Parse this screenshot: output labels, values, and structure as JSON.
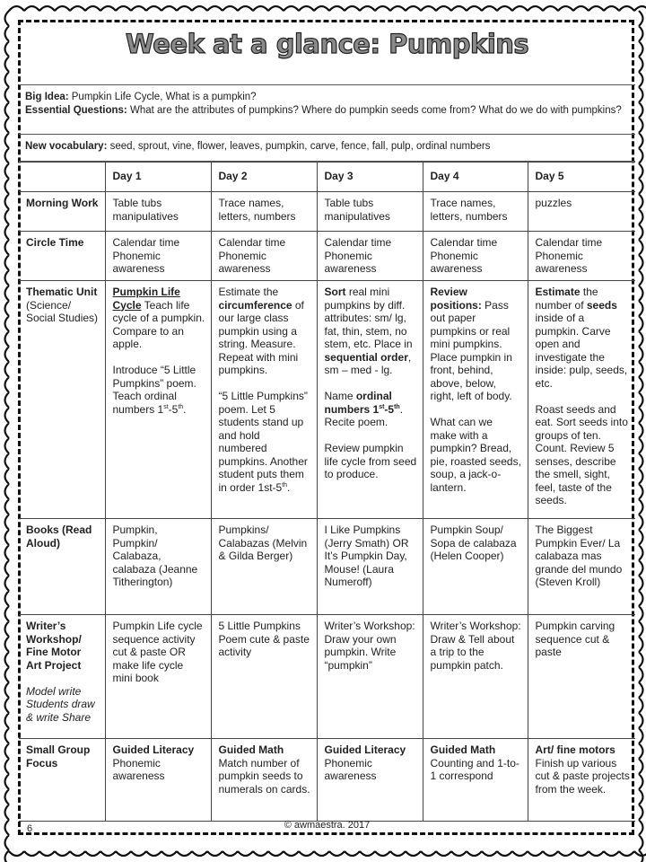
{
  "title": "Week at a glance: Pumpkins",
  "big_idea": {
    "label": "Big Idea:",
    "text": "Pumpkin Life Cycle, What is a pumpkin?"
  },
  "essential_questions": {
    "label": "Essential Questions:",
    "text": "What are the attributes of pumpkins?  Where do pumpkin seeds come from?  What do we do with pumpkins?"
  },
  "vocabulary": {
    "label": "New vocabulary:",
    "text": "seed, sprout, vine, flower, leaves, pumpkin,  carve, fence, fall, pulp,  ordinal numbers"
  },
  "table": {
    "days": [
      "Day 1",
      "Day 2",
      "Day 3",
      "Day 4",
      "Day 5"
    ],
    "rows": [
      {
        "label": [
          [
            {
              "t": "Morning Work"
            }
          ]
        ],
        "cells": [
          [
            [
              {
                "t": "Table tubs manipulatives"
              }
            ]
          ],
          [
            [
              {
                "t": "Trace names, letters, numbers"
              }
            ]
          ],
          [
            [
              {
                "t": "Table tubs manipulatives"
              }
            ]
          ],
          [
            [
              {
                "t": "Trace names, letters, numbers"
              }
            ]
          ],
          [
            [
              {
                "t": "puzzles"
              }
            ]
          ]
        ]
      },
      {
        "label": [
          [
            {
              "t": "Circle Time"
            }
          ]
        ],
        "cells": [
          [
            [
              {
                "t": "Calendar time Phonemic awareness"
              }
            ]
          ],
          [
            [
              {
                "t": "Calendar time Phonemic awareness"
              }
            ]
          ],
          [
            [
              {
                "t": "Calendar time Phonemic awareness"
              }
            ]
          ],
          [
            [
              {
                "t": "Calendar time Phonemic awareness"
              }
            ]
          ],
          [
            [
              {
                "t": "Calendar time Phonemic awareness"
              }
            ]
          ]
        ]
      },
      {
        "label": [
          [
            {
              "t": "Thematic Unit"
            },
            {
              "t": " (Science/ Social Studies)",
              "n": true
            }
          ]
        ],
        "cells": [
          [
            [
              {
                "t": "Pumpkin Life Cycle",
                "b": true,
                "u": true
              },
              {
                "t": " Teach life cycle of a pumpkin. Compare to an apple."
              }
            ],
            [
              {
                "t": "Introduce “5 Little Pumpkins” poem. Teach ordinal numbers 1"
              },
              {
                "t": "st",
                "sup": true
              },
              {
                "t": "-5"
              },
              {
                "t": "th",
                "sup": true
              },
              {
                "t": "."
              }
            ]
          ],
          [
            [
              {
                "t": "Estimate the "
              },
              {
                "t": "circumference",
                "b": true
              },
              {
                "t": " of our large class pumpkin using a string.  Measure. Repeat with mini pumpkins."
              }
            ],
            [
              {
                "t": "“5 Little Pumpkins” poem. Let 5 students stand up and hold numbered pumpkins. Another student puts them in order 1st-5"
              },
              {
                "t": "th",
                "sup": true
              },
              {
                "t": "."
              }
            ]
          ],
          [
            [
              {
                "t": "Sort",
                "b": true
              },
              {
                "t": " real mini pumpkins by diff. attributes: sm/ lg, fat, thin, stem, no stem, etc. Place in "
              },
              {
                "t": "sequential order",
                "b": true
              },
              {
                "t": ", sm – med - lg."
              }
            ],
            [
              {
                "t": "Name "
              },
              {
                "t": "ordinal numbers 1",
                "b": true
              },
              {
                "t": "st",
                "sup": true,
                "b": true
              },
              {
                "t": "-5",
                "b": true
              },
              {
                "t": "th",
                "sup": true,
                "b": true
              },
              {
                "t": ". Recite poem."
              }
            ],
            [
              {
                "t": "Review pumpkin life cycle from seed to produce."
              }
            ]
          ],
          [
            [
              {
                "t": "Review positions:",
                "b": true
              },
              {
                "t": " Pass out paper pumpkins or real mini pumpkins. Place pumpkin in front, behind, above, below, right, left of body."
              }
            ],
            [
              {
                "t": "What can we make with a pumpkin?  Bread, pie, roasted seeds, soup, a jack-o-lantern."
              }
            ]
          ],
          [
            [
              {
                "t": "Estimate",
                "b": true
              },
              {
                "t": "  the number of "
              },
              {
                "t": "seeds",
                "b": true
              },
              {
                "t": " inside of a pumpkin.  Carve open and investigate the inside: pulp, seeds, etc."
              }
            ],
            [
              {
                "t": "Roast seeds and eat.  Sort seeds into groups of ten. Count. Review 5 senses, describe the smell, sight, feel, taste of the seeds."
              }
            ]
          ]
        ]
      },
      {
        "label": [
          [
            {
              "t": "Books (Read Aloud)"
            }
          ]
        ],
        "cells": [
          [
            [
              {
                "t": "Pumpkin, Pumpkin/ Calabaza, calabaza (Jeanne Titherington)"
              }
            ]
          ],
          [
            [
              {
                "t": "Pumpkins/ Calabazas (Melvin & Gilda Berger)"
              }
            ]
          ],
          [
            [
              {
                "t": "I Like Pumpkins (Jerry Smath) OR It’s Pumpkin Day, Mouse! (Laura Numeroff)"
              }
            ]
          ],
          [
            [
              {
                "t": "Pumpkin Soup/ Sopa de calabaza (Helen Cooper)"
              }
            ]
          ],
          [
            [
              {
                "t": "The Biggest Pumpkin Ever/ La calabaza mas grande del mundo (Steven Kroll)"
              }
            ]
          ]
        ]
      },
      {
        "label": [
          [
            {
              "t": "Writer’s Workshop/ Fine Motor Art Project"
            }
          ],
          [
            {
              "t": "Model write Students draw & write Share",
              "i": true
            }
          ]
        ],
        "cells": [
          [
            [
              {
                "t": "Pumpkin Life cycle sequence activity cut & paste  OR make life cycle mini book"
              }
            ]
          ],
          [
            [
              {
                "t": "5 Little Pumpkins Poem cute & paste activity"
              }
            ]
          ],
          [
            [
              {
                "t": "Writer’s Workshop: Draw your own pumpkin.  Write “pumpkin”"
              }
            ]
          ],
          [
            [
              {
                "t": "Writer’s Workshop: Draw & Tell about a trip to the pumpkin patch."
              }
            ]
          ],
          [
            [
              {
                "t": "Pumpkin carving sequence cut & paste"
              }
            ]
          ]
        ]
      },
      {
        "label": [
          [
            {
              "t": "Small Group Focus"
            }
          ]
        ],
        "cells": [
          [
            [
              {
                "t": "Guided Literacy",
                "b": true
              },
              {
                "t": " Phonemic awareness"
              }
            ]
          ],
          [
            [
              {
                "t": "Guided Math",
                "b": true
              },
              {
                "t": " Match number of pumpkin seeds to numerals on cards."
              }
            ]
          ],
          [
            [
              {
                "t": "Guided Literacy",
                "b": true
              },
              {
                "t": " Phonemic awareness"
              }
            ]
          ],
          [
            [
              {
                "t": "Guided Math",
                "b": true
              },
              {
                "t": " Counting and 1-to-1 correspond"
              }
            ]
          ],
          [
            [
              {
                "t": "Art/ fine motors",
                "b": true
              },
              {
                "t": " Finish up various cut & paste projects from the week."
              }
            ]
          ]
        ]
      }
    ]
  },
  "footer": {
    "page_number": "6",
    "copyright": "© awmaestra. 2017"
  }
}
